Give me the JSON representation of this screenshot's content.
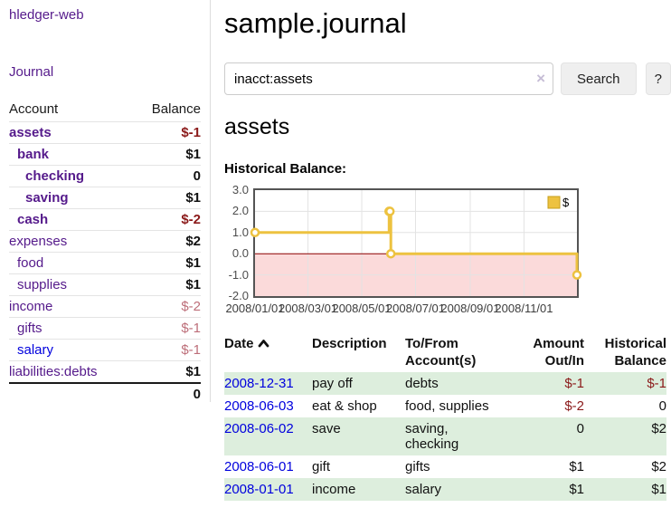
{
  "palette": {
    "link_visited": "#551a8b",
    "link_unvisited": "#0000dd",
    "negative_strong": "#8b1a1a",
    "negative_muted": "#bd6e79",
    "row_stripe_green": "#ddeedd",
    "chart_line_gold": "#edc240",
    "chart_negative_fill": "#fbdada",
    "zero_line_red": "#8b0000"
  },
  "sidebar": {
    "app_title": "hledger-web",
    "nav": [
      {
        "label": "Journal"
      }
    ],
    "accounts": {
      "header_account": "Account",
      "header_balance": "Balance",
      "rows": [
        {
          "name": "assets",
          "level": 1,
          "emphasis": "emph",
          "balance": "$-1",
          "tone": "negative"
        },
        {
          "name": "bank",
          "level": 2,
          "emphasis": "emph",
          "balance": "$1",
          "tone": ""
        },
        {
          "name": "checking",
          "level": 3,
          "emphasis": "emph",
          "balance": "0",
          "tone": ""
        },
        {
          "name": "saving",
          "level": 3,
          "emphasis": "emph",
          "balance": "$1",
          "tone": ""
        },
        {
          "name": "cash",
          "level": 2,
          "emphasis": "emph",
          "balance": "$-2",
          "tone": "negative"
        },
        {
          "name": "expenses",
          "level": 1,
          "balance": "$2",
          "tone": ""
        },
        {
          "name": "food",
          "level": 2,
          "balance": "$1",
          "tone": ""
        },
        {
          "name": "supplies",
          "level": 2,
          "balance": "$1",
          "tone": ""
        },
        {
          "name": "income",
          "level": 1,
          "balance": "$-2",
          "tone": "negative-muted"
        },
        {
          "name": "gifts",
          "level": 2,
          "balance": "$-1",
          "tone": "negative-muted"
        },
        {
          "name": "salary",
          "level": 2,
          "link_tone": "unvisited",
          "balance": "$-1",
          "tone": "negative-muted"
        },
        {
          "name": "liabilities:debts",
          "level": 1,
          "balance": "$1",
          "tone": ""
        }
      ],
      "total": "0"
    }
  },
  "header": {
    "title": "sample.journal",
    "search_value": "inacct:assets",
    "clear_label": "×",
    "search_button": "Search",
    "help_button": "?"
  },
  "main": {
    "account_heading": "assets",
    "chart_title": "Historical Balance:"
  },
  "chart_data": {
    "type": "line",
    "title": "Historical Balance:",
    "step": true,
    "grid": true,
    "legend_position": "top-right",
    "xlim": [
      "2008-01-01",
      "2008-12-31"
    ],
    "ylim": [
      -2,
      3
    ],
    "y_ticks": [
      "3.0",
      "2.0",
      "1.0",
      "0.0",
      "-1.0",
      "-2.0"
    ],
    "x_ticks": [
      "2008/01/01",
      "2008/03/01",
      "2008/05/01",
      "2008/07/01",
      "2008/09/01",
      "2008/11/01"
    ],
    "series": [
      {
        "name": "$",
        "color": "#edc240",
        "points": [
          [
            "2008-01-01",
            1
          ],
          [
            "2008-06-01",
            2
          ],
          [
            "2008-06-02",
            2
          ],
          [
            "2008-06-03",
            0
          ],
          [
            "2008-12-31",
            -1
          ]
        ]
      }
    ],
    "negative_fill": "#fbdada",
    "zero_line_color": "#8b0000",
    "grid_color": "#e3e3e3"
  },
  "register": {
    "headers": {
      "date": "Date",
      "description": "Description",
      "accounts": "To/From Account(s)",
      "amount": "Amount Out/In",
      "balance": "Historical Balance"
    },
    "rows": [
      {
        "date": "2008-12-31",
        "description": "pay off",
        "accounts": "debts",
        "amount": "$-1",
        "amount_tone": "negative",
        "balance": "$-1",
        "balance_tone": "negative"
      },
      {
        "date": "2008-06-03",
        "description": "eat & shop",
        "accounts": "food, supplies",
        "amount": "$-2",
        "amount_tone": "negative",
        "balance": "0",
        "balance_tone": ""
      },
      {
        "date": "2008-06-02",
        "description": "save",
        "accounts": "saving, checking",
        "amount": "0",
        "amount_tone": "",
        "balance": "$2",
        "balance_tone": ""
      },
      {
        "date": "2008-06-01",
        "description": "gift",
        "accounts": "gifts",
        "amount": "$1",
        "amount_tone": "",
        "balance": "$2",
        "balance_tone": ""
      },
      {
        "date": "2008-01-01",
        "description": "income",
        "accounts": "salary",
        "amount": "$1",
        "amount_tone": "",
        "balance": "$1",
        "balance_tone": ""
      }
    ]
  }
}
